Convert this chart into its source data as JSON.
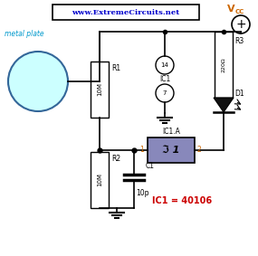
{
  "bg_color": "#ffffff",
  "title_text": "www.ExtremeCircuits.net",
  "title_color": "#0000cc",
  "vcc_color": "#cc6600",
  "metal_plate_text": "metal plate",
  "metal_plate_color": "#0099cc",
  "plate_fill": "#ccffff",
  "plate_border": "#336699",
  "r1_label": "R1",
  "r1_value": "10M",
  "r2_label": "R2",
  "r2_value": "10M",
  "r3_label": "R3",
  "r3_value": "220Ω",
  "c1_label": "C1",
  "c1_value": "10p",
  "ic1_label": "IC1.A",
  "ic1_ref": "IC1",
  "d1_label": "D1",
  "ic1_eq": "IC1 = 40106",
  "ic1_eq_color": "#cc0000",
  "wire_color": "#000000",
  "gate_fill": "#8888bb",
  "node_color": "#000000",
  "pin1_label": "1",
  "pin2_label": "2",
  "pin_color": "#cc6600"
}
